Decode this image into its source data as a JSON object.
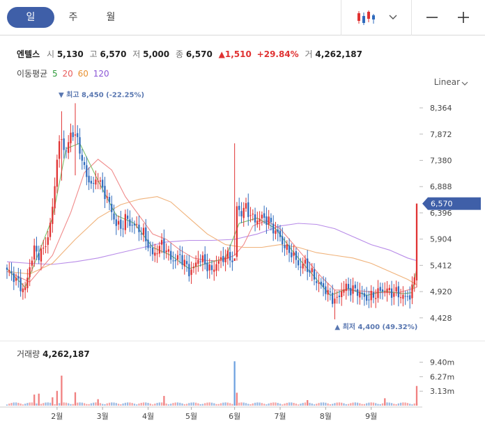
{
  "tabs": [
    {
      "label": "일",
      "active": true
    },
    {
      "label": "주",
      "active": false
    },
    {
      "label": "월",
      "active": false
    }
  ],
  "toolbar": {
    "chart_type_icon": "candlestick-icon",
    "zoom_out_icon": "minus-icon",
    "zoom_in_icon": "plus-icon"
  },
  "stock": {
    "name": "엔텔스",
    "open_label": "시",
    "open": "5,130",
    "high_label": "고",
    "high": "6,570",
    "low_label": "저",
    "low": "5,000",
    "close_label": "종",
    "close": "6,570",
    "change": "1,510",
    "change_pct": "+29.84%",
    "volume_label": "거",
    "volume": "4,262,187"
  },
  "moving_average": {
    "label": "이동평균",
    "periods": [
      {
        "value": "5",
        "color": "#2e9b3a"
      },
      {
        "value": "20",
        "color": "#e85a5a"
      },
      {
        "value": "60",
        "color": "#e8902f"
      },
      {
        "value": "120",
        "color": "#8a55d6"
      }
    ]
  },
  "scale": {
    "label": "Linear"
  },
  "colors": {
    "up": "#e03232",
    "down": "#2f6bbd",
    "accent": "#3f5fa8",
    "ma5": "#7bbf6a",
    "ma20": "#f08a8a",
    "ma60": "#f0b27a",
    "ma120": "#b88be8"
  },
  "chart_data": {
    "type": "candlestick",
    "price_axis": {
      "ticks": [
        8364,
        7872,
        7380,
        6888,
        6396,
        5904,
        5412,
        4920,
        4428
      ],
      "tick_labels": [
        "8,364",
        "7,872",
        "7,380",
        "6,888",
        "6,396",
        "5,904",
        "5,412",
        "4,920",
        "4,428"
      ],
      "range": [
        4230,
        8560
      ]
    },
    "volume_axis": {
      "ticks": [
        9.4,
        6.27,
        3.13
      ],
      "tick_labels": [
        "9.40m",
        "6.27m",
        "3.13m"
      ],
      "range": [
        0,
        12.5
      ]
    },
    "x_labels": [
      "2월",
      "3월",
      "4월",
      "5월",
      "6월",
      "7월",
      "8월",
      "9월"
    ],
    "x_label_index": [
      22,
      42,
      62,
      81,
      100,
      120,
      140,
      160
    ],
    "current_price": {
      "value": 6570,
      "label": "6,570"
    },
    "max_marker": {
      "value": 8450,
      "label": "최고 8,450 (-22.25%)",
      "index": 30
    },
    "min_marker": {
      "value": 4400,
      "label": "최저 4,400 (49.32%)",
      "index": 144
    },
    "volume_label": "거래량",
    "volume_value": "4,262,187",
    "close_path": [
      [
        0,
        5330
      ],
      [
        3,
        5200
      ],
      [
        6,
        5020
      ],
      [
        8,
        4950
      ],
      [
        10,
        5400
      ],
      [
        12,
        5700
      ],
      [
        14,
        5620
      ],
      [
        16,
        5700
      ],
      [
        18,
        5950
      ],
      [
        20,
        6450
      ],
      [
        22,
        7450
      ],
      [
        24,
        7800
      ],
      [
        26,
        7500
      ],
      [
        28,
        7900
      ],
      [
        30,
        7850
      ],
      [
        32,
        7600
      ],
      [
        34,
        7200
      ],
      [
        36,
        7000
      ],
      [
        38,
        6900
      ],
      [
        40,
        7100
      ],
      [
        42,
        6800
      ],
      [
        44,
        6700
      ],
      [
        46,
        6400
      ],
      [
        48,
        6200
      ],
      [
        50,
        6100
      ],
      [
        52,
        6300
      ],
      [
        54,
        6200
      ],
      [
        56,
        6150
      ],
      [
        58,
        6100
      ],
      [
        60,
        6000
      ],
      [
        62,
        5800
      ],
      [
        64,
        5600
      ],
      [
        66,
        5700
      ],
      [
        68,
        5800
      ],
      [
        70,
        5700
      ],
      [
        72,
        5550
      ],
      [
        74,
        5500
      ],
      [
        76,
        5600
      ],
      [
        78,
        5450
      ],
      [
        80,
        5300
      ],
      [
        82,
        5350
      ],
      [
        84,
        5550
      ],
      [
        86,
        5500
      ],
      [
        88,
        5400
      ],
      [
        90,
        5300
      ],
      [
        92,
        5450
      ],
      [
        94,
        5500
      ],
      [
        96,
        5600
      ],
      [
        98,
        5550
      ],
      [
        100,
        5500
      ],
      [
        101,
        6500
      ],
      [
        103,
        6400
      ],
      [
        105,
        6500
      ],
      [
        107,
        6350
      ],
      [
        109,
        6250
      ],
      [
        111,
        6300
      ],
      [
        113,
        6300
      ],
      [
        115,
        6250
      ],
      [
        117,
        6100
      ],
      [
        119,
        6000
      ],
      [
        121,
        5850
      ],
      [
        123,
        5700
      ],
      [
        125,
        5650
      ],
      [
        127,
        5500
      ],
      [
        129,
        5400
      ],
      [
        131,
        5450
      ],
      [
        133,
        5300
      ],
      [
        135,
        5200
      ],
      [
        137,
        5050
      ],
      [
        139,
        5000
      ],
      [
        141,
        4900
      ],
      [
        143,
        4800
      ],
      [
        145,
        4750
      ],
      [
        147,
        4950
      ],
      [
        149,
        5000
      ],
      [
        151,
        4950
      ],
      [
        153,
        4950
      ],
      [
        155,
        4900
      ],
      [
        157,
        4800
      ],
      [
        159,
        4800
      ],
      [
        161,
        4850
      ],
      [
        163,
        4900
      ],
      [
        165,
        4950
      ],
      [
        167,
        4950
      ],
      [
        169,
        4900
      ],
      [
        171,
        4900
      ],
      [
        173,
        4850
      ],
      [
        175,
        4800
      ],
      [
        177,
        4850
      ],
      [
        179,
        5130
      ],
      [
        180,
        6570
      ]
    ],
    "spikes": [
      {
        "index": 24,
        "high": 8300,
        "low": 7000
      },
      {
        "index": 30,
        "high": 8450,
        "low": 7100
      },
      {
        "index": 100,
        "high": 7700,
        "low": 5600
      },
      {
        "index": 101,
        "high": 6600,
        "low": 5500
      },
      {
        "index": 144,
        "high": 4950,
        "low": 4400
      },
      {
        "index": 180,
        "high": 6570,
        "low": 5000
      }
    ],
    "ma5": [
      [
        0,
        5350
      ],
      [
        8,
        5000
      ],
      [
        14,
        5650
      ],
      [
        20,
        6300
      ],
      [
        26,
        7600
      ],
      [
        32,
        7700
      ],
      [
        40,
        7000
      ],
      [
        48,
        6350
      ],
      [
        56,
        6200
      ],
      [
        64,
        5750
      ],
      [
        72,
        5600
      ],
      [
        80,
        5350
      ],
      [
        88,
        5450
      ],
      [
        96,
        5550
      ],
      [
        102,
        6200
      ],
      [
        110,
        6300
      ],
      [
        118,
        6100
      ],
      [
        126,
        5650
      ],
      [
        134,
        5250
      ],
      [
        142,
        4850
      ],
      [
        150,
        4980
      ],
      [
        158,
        4850
      ],
      [
        166,
        4930
      ],
      [
        174,
        4880
      ],
      [
        178,
        4900
      ],
      [
        180,
        5350
      ]
    ],
    "ma20": [
      [
        0,
        5300
      ],
      [
        10,
        5100
      ],
      [
        20,
        5600
      ],
      [
        28,
        6400
      ],
      [
        34,
        7150
      ],
      [
        40,
        7400
      ],
      [
        46,
        7200
      ],
      [
        52,
        6700
      ],
      [
        58,
        6350
      ],
      [
        64,
        6000
      ],
      [
        70,
        5900
      ],
      [
        76,
        5700
      ],
      [
        82,
        5550
      ],
      [
        88,
        5500
      ],
      [
        94,
        5500
      ],
      [
        100,
        5600
      ],
      [
        104,
        5800
      ],
      [
        108,
        6150
      ],
      [
        114,
        6250
      ],
      [
        120,
        6100
      ],
      [
        126,
        5800
      ],
      [
        132,
        5500
      ],
      [
        138,
        5200
      ],
      [
        144,
        4950
      ],
      [
        150,
        4950
      ],
      [
        156,
        4930
      ],
      [
        164,
        4900
      ],
      [
        172,
        4900
      ],
      [
        180,
        5000
      ]
    ],
    "ma60": [
      [
        0,
        5300
      ],
      [
        10,
        5250
      ],
      [
        20,
        5450
      ],
      [
        30,
        5900
      ],
      [
        40,
        6300
      ],
      [
        50,
        6550
      ],
      [
        58,
        6650
      ],
      [
        66,
        6700
      ],
      [
        72,
        6600
      ],
      [
        80,
        6300
      ],
      [
        88,
        6000
      ],
      [
        96,
        5800
      ],
      [
        104,
        5750
      ],
      [
        112,
        5750
      ],
      [
        120,
        5800
      ],
      [
        128,
        5750
      ],
      [
        136,
        5650
      ],
      [
        144,
        5600
      ],
      [
        152,
        5550
      ],
      [
        160,
        5450
      ],
      [
        168,
        5300
      ],
      [
        176,
        5150
      ],
      [
        180,
        5050
      ]
    ],
    "ma120": [
      [
        0,
        5480
      ],
      [
        10,
        5450
      ],
      [
        20,
        5430
      ],
      [
        30,
        5480
      ],
      [
        40,
        5550
      ],
      [
        50,
        5650
      ],
      [
        60,
        5750
      ],
      [
        70,
        5850
      ],
      [
        80,
        5880
      ],
      [
        90,
        5880
      ],
      [
        100,
        5900
      ],
      [
        110,
        6000
      ],
      [
        120,
        6150
      ],
      [
        128,
        6200
      ],
      [
        136,
        6180
      ],
      [
        144,
        6100
      ],
      [
        152,
        5950
      ],
      [
        160,
        5800
      ],
      [
        168,
        5700
      ],
      [
        176,
        5550
      ],
      [
        180,
        5500
      ]
    ],
    "volume_bars": [
      {
        "index": 12,
        "value": 2.4,
        "up": true
      },
      {
        "index": 14,
        "value": 2.6,
        "up": true
      },
      {
        "index": 20,
        "value": 1.8,
        "up": true
      },
      {
        "index": 22,
        "value": 3.2,
        "up": true
      },
      {
        "index": 24,
        "value": 6.5,
        "up": true
      },
      {
        "index": 30,
        "value": 2.9,
        "up": true
      },
      {
        "index": 40,
        "value": 1.4,
        "up": true
      },
      {
        "index": 69,
        "value": 2.1,
        "up": true
      },
      {
        "index": 100,
        "value": 9.6,
        "up": false
      },
      {
        "index": 101,
        "value": 2.8,
        "up": true
      },
      {
        "index": 132,
        "value": 1.2,
        "up": true
      },
      {
        "index": 166,
        "value": 1.6,
        "up": true
      },
      {
        "index": 180,
        "value": 4.26,
        "up": true
      }
    ]
  }
}
